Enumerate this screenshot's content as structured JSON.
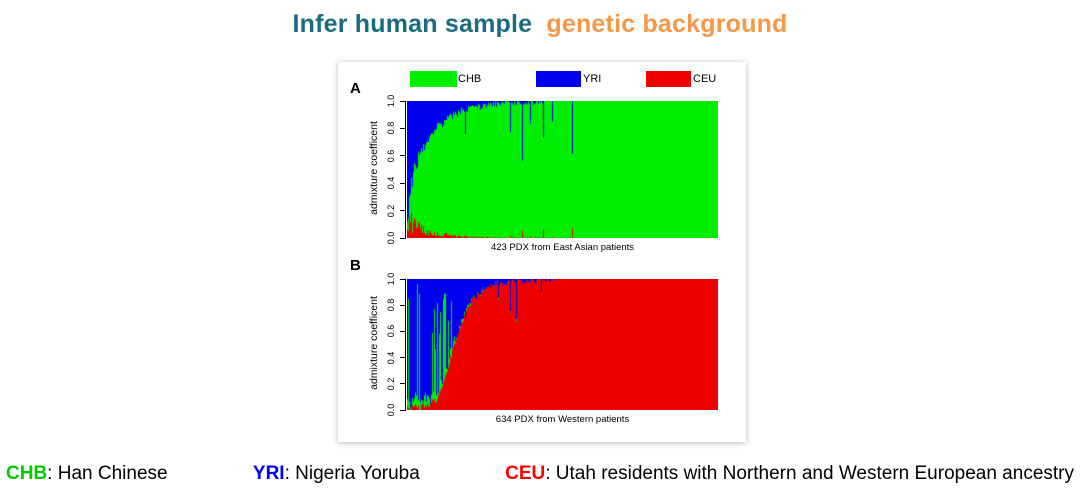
{
  "title": {
    "part1": "Infer human sample",
    "part2": "genetic background",
    "part1_color": "#1b6b80",
    "part2_color": "#f79646"
  },
  "figure": {
    "legend": {
      "items": [
        {
          "label": "CHB",
          "color": "#00ee00"
        },
        {
          "label": "YRI",
          "color": "#0000ee"
        },
        {
          "label": "CEU",
          "color": "#ee0000"
        }
      ]
    }
  },
  "chart_data": [
    {
      "type": "bar",
      "subtype": "stacked-admixture",
      "panel_label": "A",
      "n_samples": 423,
      "xlabel": "423 PDX from East Asian patients",
      "ylabel": "admixture coefficent",
      "yticks": [
        "0.0",
        "0.2",
        "0.4",
        "0.6",
        "0.8",
        "1.0"
      ],
      "ylim": [
        0,
        1
      ],
      "legend_position": "top",
      "grid": false,
      "series_colors": {
        "CHB": "#00ee00",
        "YRI": "#0000ee",
        "CEU": "#ee0000"
      },
      "dominant": "CHB",
      "secondary": "YRI",
      "tertiary": "CEU",
      "stack_bottom_to_top": [
        "CEU",
        "CHB",
        "YRI"
      ],
      "dominant_profile": [
        [
          0,
          0.04
        ],
        [
          0.008,
          0.15
        ],
        [
          0.02,
          0.35
        ],
        [
          0.05,
          0.6
        ],
        [
          0.1,
          0.8
        ],
        [
          0.18,
          0.93
        ],
        [
          0.3,
          0.985
        ],
        [
          0.45,
          1
        ],
        [
          1,
          1
        ]
      ],
      "secondary_share_base": 0.75,
      "secondary_share_rand": 0.22,
      "tertiary_spike_prob": 0,
      "tertiary_spike_region": [
        0,
        0
      ],
      "spike_prob": 0.07,
      "spike_region": [
        0.03,
        0.55
      ],
      "spike_depth": 0.45,
      "noise": 0.05,
      "seed": 20423
    },
    {
      "type": "bar",
      "subtype": "stacked-admixture",
      "panel_label": "B",
      "n_samples": 634,
      "xlabel": "634 PDX from Western patients",
      "ylabel": "admixture coefficent",
      "yticks": [
        "0.0",
        "0.2",
        "0.4",
        "0.6",
        "0.8",
        "1.0"
      ],
      "ylim": [
        0,
        1
      ],
      "legend_position": "top",
      "grid": false,
      "series_colors": {
        "CHB": "#00ee00",
        "YRI": "#0000ee",
        "CEU": "#ee0000"
      },
      "dominant": "CEU",
      "secondary": "YRI",
      "tertiary": "CHB",
      "stack_bottom_to_top": [
        "CEU",
        "CHB",
        "YRI"
      ],
      "dominant_profile": [
        [
          0,
          0.01
        ],
        [
          0.06,
          0.03
        ],
        [
          0.1,
          0.08
        ],
        [
          0.13,
          0.3
        ],
        [
          0.16,
          0.55
        ],
        [
          0.2,
          0.8
        ],
        [
          0.26,
          0.95
        ],
        [
          0.35,
          0.99
        ],
        [
          0.5,
          1
        ],
        [
          1,
          1
        ]
      ],
      "secondary_share_base": 0.9,
      "secondary_share_rand": 0.1,
      "tertiary_spike_prob": 0.32,
      "tertiary_spike_region": [
        0,
        0.16
      ],
      "spike_prob": 0.05,
      "spike_region": [
        0.14,
        0.45
      ],
      "spike_depth": 0.6,
      "noise": 0.05,
      "seed": 30634
    }
  ],
  "footer": {
    "entries": [
      {
        "abbr": "CHB",
        "color": "#00cc00",
        "desc": ": Han Chinese"
      },
      {
        "abbr": "YRI",
        "color": "#0000ff",
        "desc": ": Nigeria Yoruba"
      },
      {
        "abbr": "CEU",
        "color": "#ff0000",
        "desc": ": Utah residents with Northern and Western European ancestry"
      }
    ]
  }
}
